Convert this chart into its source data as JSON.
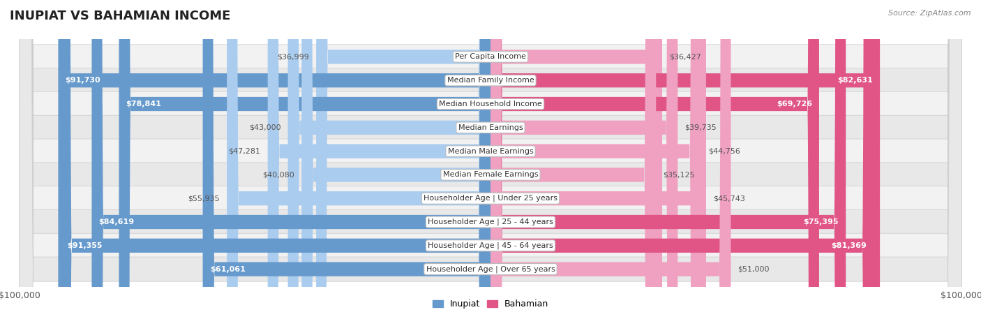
{
  "title": "INUPIAT VS BAHAMIAN INCOME",
  "source": "Source: ZipAtlas.com",
  "categories": [
    "Per Capita Income",
    "Median Family Income",
    "Median Household Income",
    "Median Earnings",
    "Median Male Earnings",
    "Median Female Earnings",
    "Householder Age | Under 25 years",
    "Householder Age | 25 - 44 years",
    "Householder Age | 45 - 64 years",
    "Householder Age | Over 65 years"
  ],
  "inupiat": [
    36999,
    91730,
    78841,
    43000,
    47281,
    40080,
    55935,
    84619,
    91355,
    61061
  ],
  "bahamian": [
    36427,
    82631,
    69726,
    39735,
    44756,
    35125,
    45743,
    75395,
    81369,
    51000
  ],
  "max_value": 100000,
  "inupiat_color_strong": "#6699cc",
  "inupiat_color_light": "#aaccee",
  "bahamian_color_strong": "#e05585",
  "bahamian_color_light": "#f0a0c0",
  "threshold_strong": 60000,
  "bar_height": 0.6,
  "row_colors": [
    "#f2f2f2",
    "#e8e8e8"
  ],
  "legend_inupiat": "Inupiat",
  "legend_bahamian": "Bahamian",
  "title_fontsize": 13,
  "label_fontsize": 8,
  "value_fontsize": 8
}
